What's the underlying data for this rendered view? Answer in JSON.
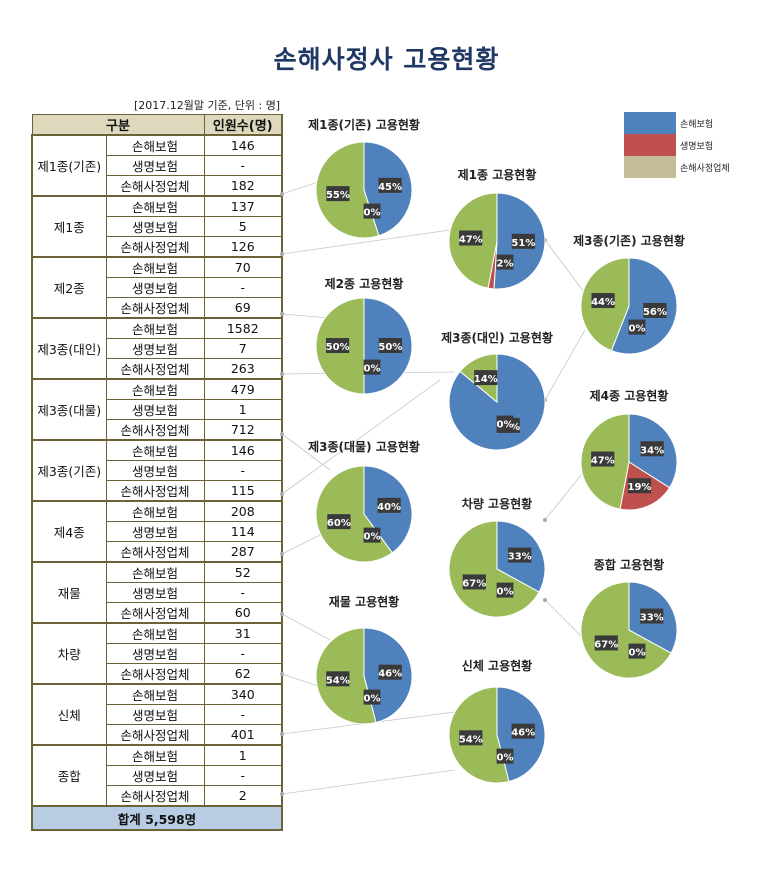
{
  "title": "손해사정사 고용현황",
  "unit_note": "[2017.12월말 기준, 단위 : 명]",
  "table": {
    "headers": [
      "구분",
      "인원수(명)"
    ],
    "groups": [
      {
        "name": "제1종(기존)",
        "rows": [
          {
            "type": "손해보험",
            "value": "146"
          },
          {
            "type": "생명보험",
            "value": "-"
          },
          {
            "type": "손해사정업체",
            "value": "182"
          }
        ]
      },
      {
        "name": "제1종",
        "rows": [
          {
            "type": "손해보험",
            "value": "137"
          },
          {
            "type": "생명보험",
            "value": "5"
          },
          {
            "type": "손해사정업체",
            "value": "126"
          }
        ]
      },
      {
        "name": "제2종",
        "rows": [
          {
            "type": "손해보험",
            "value": "70"
          },
          {
            "type": "생명보험",
            "value": "-"
          },
          {
            "type": "손해사정업체",
            "value": "69"
          }
        ]
      },
      {
        "name": "제3종(대인)",
        "rows": [
          {
            "type": "손해보험",
            "value": "1582"
          },
          {
            "type": "생명보험",
            "value": "7"
          },
          {
            "type": "손해사정업체",
            "value": "263"
          }
        ]
      },
      {
        "name": "제3종(대물)",
        "rows": [
          {
            "type": "손해보험",
            "value": "479"
          },
          {
            "type": "생명보험",
            "value": "1"
          },
          {
            "type": "손해사정업체",
            "value": "712"
          }
        ]
      },
      {
        "name": "제3종(기존)",
        "rows": [
          {
            "type": "손해보험",
            "value": "146"
          },
          {
            "type": "생명보험",
            "value": "-"
          },
          {
            "type": "손해사정업체",
            "value": "115"
          }
        ]
      },
      {
        "name": "제4종",
        "rows": [
          {
            "type": "손해보험",
            "value": "208"
          },
          {
            "type": "생명보험",
            "value": "114"
          },
          {
            "type": "손해사정업체",
            "value": "287"
          }
        ]
      },
      {
        "name": "재물",
        "rows": [
          {
            "type": "손해보험",
            "value": "52"
          },
          {
            "type": "생명보험",
            "value": "-"
          },
          {
            "type": "손해사정업체",
            "value": "60"
          }
        ]
      },
      {
        "name": "차량",
        "rows": [
          {
            "type": "손해보험",
            "value": "31"
          },
          {
            "type": "생명보험",
            "value": "-"
          },
          {
            "type": "손해사정업체",
            "value": "62"
          }
        ]
      },
      {
        "name": "신체",
        "rows": [
          {
            "type": "손해보험",
            "value": "340"
          },
          {
            "type": "생명보험",
            "value": "-"
          },
          {
            "type": "손해사정업체",
            "value": "401"
          }
        ]
      },
      {
        "name": "종합",
        "rows": [
          {
            "type": "손해보험",
            "value": "1"
          },
          {
            "type": "생명보험",
            "value": "-"
          },
          {
            "type": "손해사정업체",
            "value": "2"
          }
        ]
      }
    ],
    "total": "합계 5,598명"
  },
  "legend": [
    {
      "label": "손해보험",
      "color": "#4f81bd"
    },
    {
      "label": "생명보험",
      "color": "#c0504d"
    },
    {
      "label": "손해사정업체",
      "color": "#c4bd97"
    }
  ],
  "chart_data": [
    {
      "type": "pie",
      "title": "제1종(기존) 고용현황",
      "categories": [
        "손해보험",
        "생명보험",
        "손해사정업체"
      ],
      "values": [
        45,
        0,
        55
      ]
    },
    {
      "type": "pie",
      "title": "제1종 고용현황",
      "categories": [
        "손해보험",
        "생명보험",
        "손해사정업체"
      ],
      "values": [
        51,
        2,
        47
      ]
    },
    {
      "type": "pie",
      "title": "제3종(기존) 고용현황",
      "categories": [
        "손해보험",
        "생명보험",
        "손해사정업체"
      ],
      "values": [
        56,
        0,
        44
      ]
    },
    {
      "type": "pie",
      "title": "제2종 고용현황",
      "categories": [
        "손해보험",
        "생명보험",
        "손해사정업체"
      ],
      "values": [
        50,
        0,
        50
      ]
    },
    {
      "type": "pie",
      "title": "제3종(대인) 고용현황",
      "categories": [
        "손해보험",
        "생명보험",
        "손해사정업체"
      ],
      "values": [
        86,
        0,
        14
      ]
    },
    {
      "type": "pie",
      "title": "제4종 고용현황",
      "categories": [
        "손해보험",
        "생명보험",
        "손해사정업체"
      ],
      "values": [
        34,
        19,
        47
      ]
    },
    {
      "type": "pie",
      "title": "제3종(대물) 고용현황",
      "categories": [
        "손해보험",
        "생명보험",
        "손해사정업체"
      ],
      "values": [
        40,
        0,
        60
      ]
    },
    {
      "type": "pie",
      "title": "차량 고용현황",
      "categories": [
        "손해보험",
        "생명보험",
        "손해사정업체"
      ],
      "values": [
        33,
        0,
        67
      ]
    },
    {
      "type": "pie",
      "title": "종합 고용현황",
      "categories": [
        "손해보험",
        "생명보험",
        "손해사정업체"
      ],
      "values": [
        33,
        0,
        67
      ]
    },
    {
      "type": "pie",
      "title": "재물 고용현황",
      "categories": [
        "손해보험",
        "생명보험",
        "손해사정업체"
      ],
      "values": [
        46,
        0,
        54
      ]
    },
    {
      "type": "pie",
      "title": "신체 고용현황",
      "categories": [
        "손해보험",
        "생명보험",
        "손해사정업체"
      ],
      "values": [
        46,
        0,
        54
      ]
    }
  ]
}
